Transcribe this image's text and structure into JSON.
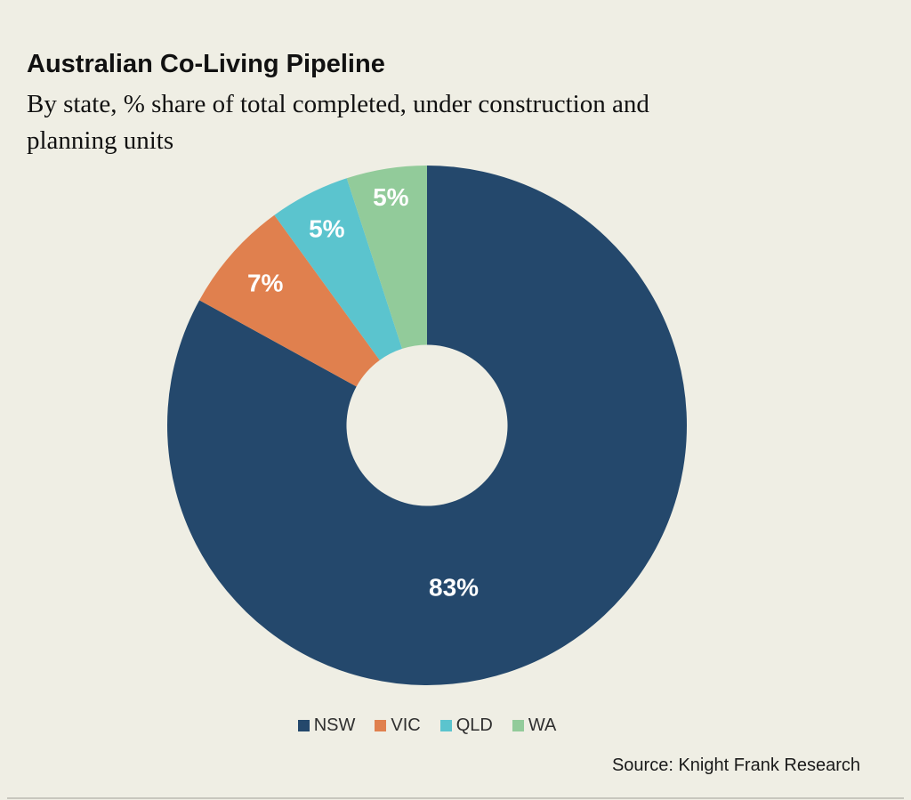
{
  "page": {
    "background_color": "#EFEEE4",
    "bottom_rule_color": "#C8C7BE"
  },
  "header": {
    "title": "Australian Co-Living Pipeline",
    "subtitle": "By state, % share of total completed, under construction and\nplanning units"
  },
  "source": "Source: Knight Frank Research",
  "chart_data": {
    "type": "pie",
    "variant": "donut",
    "title": "Australian Co-Living Pipeline",
    "subtitle": "By state, % share of total completed, under construction and planning units",
    "categories": [
      "NSW",
      "VIC",
      "QLD",
      "WA"
    ],
    "values": [
      83,
      7,
      5,
      5
    ],
    "unit": "%",
    "slice_labels": [
      "83%",
      "7%",
      "5%",
      "5%"
    ],
    "colors": [
      "#24486C",
      "#E0804E",
      "#5BC4CE",
      "#92CB9A"
    ],
    "label_color": "#FFFFFF",
    "start_angle_deg": 0,
    "direction": "clockwise",
    "inner_radius_frac": 0.31,
    "legend_position": "bottom-center",
    "label_pos_hints": [
      {
        "angle_deg": 170.6,
        "radius_frac": 0.63
      },
      {
        "angle_deg": 311.4,
        "radius_frac": 0.83
      },
      {
        "angle_deg": 333.0,
        "radius_frac": 0.85
      },
      {
        "angle_deg": 351.0,
        "radius_frac": 0.89
      }
    ]
  }
}
